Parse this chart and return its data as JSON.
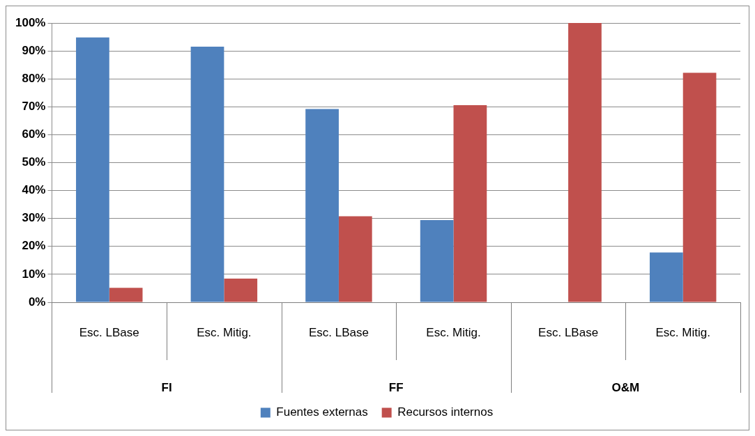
{
  "chart_data": {
    "type": "bar",
    "categories": [
      "Esc. LBase",
      "Esc. Mitig.",
      "Esc. LBase",
      "Esc. Mitig.",
      "Esc. LBase",
      "Esc. Mitig."
    ],
    "annotations": [
      "FI",
      "FF",
      "O&M"
    ],
    "series": [
      {
        "name": "Fuentes externas",
        "color": "#4f81bd",
        "values": [
          94.8,
          91.5,
          69.2,
          29.4,
          0,
          17.8
        ]
      },
      {
        "name": "Recursos internos",
        "color": "#c0504d",
        "values": [
          5.2,
          8.5,
          30.8,
          70.6,
          100,
          82.2
        ]
      }
    ],
    "ylim": [
      0,
      100
    ],
    "yticks": [
      {
        "value": 0,
        "label": "0%"
      },
      {
        "value": 10,
        "label": "10%"
      },
      {
        "value": 20,
        "label": "20%"
      },
      {
        "value": 30,
        "label": "30%"
      },
      {
        "value": 40,
        "label": "40%"
      },
      {
        "value": 50,
        "label": "50%"
      },
      {
        "value": 60,
        "label": "60%"
      },
      {
        "value": 70,
        "label": "70%"
      },
      {
        "value": 80,
        "label": "80%"
      },
      {
        "value": 90,
        "label": "90%"
      },
      {
        "value": 100,
        "label": "100%"
      }
    ],
    "grid": "y",
    "legend": "bottom"
  }
}
